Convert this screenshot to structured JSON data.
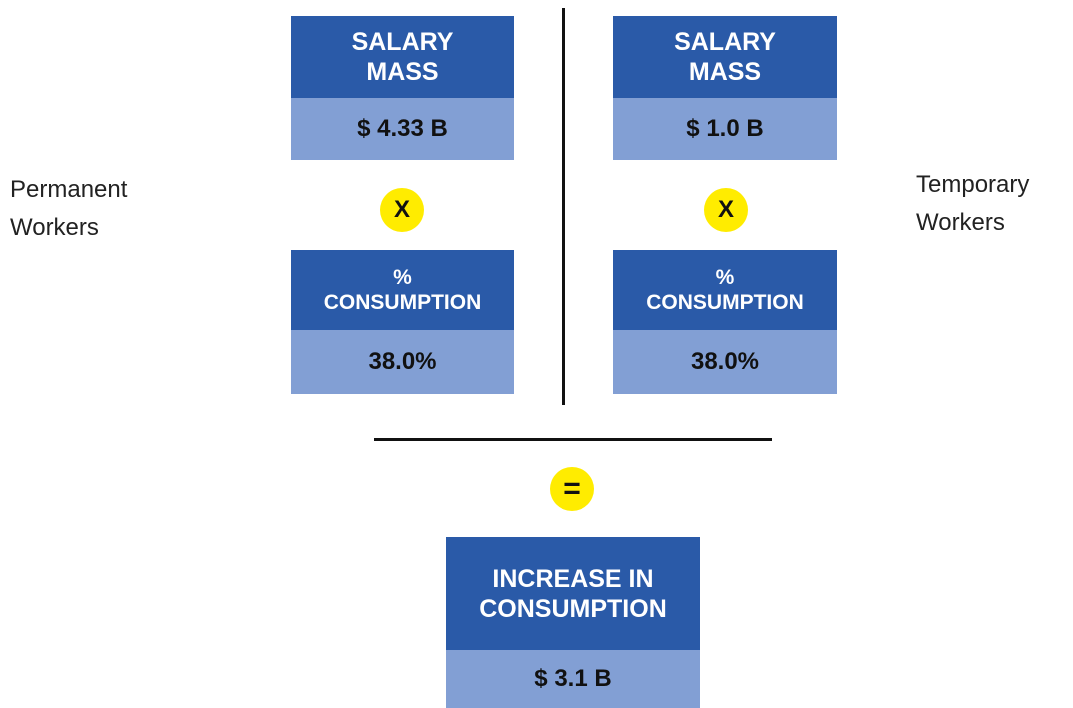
{
  "left": {
    "label": [
      "Permanent",
      "Workers"
    ],
    "salary": {
      "title": [
        "SALARY",
        "MASS"
      ],
      "value": "$ 4.33 B"
    },
    "operator": "X",
    "consumption": {
      "title": [
        "%",
        "CONSUMPTION"
      ],
      "value": "38.0%"
    }
  },
  "right": {
    "label": [
      "Temporary",
      "Workers"
    ],
    "salary": {
      "title": [
        "SALARY",
        "MASS"
      ],
      "value": "$ 1.0 B"
    },
    "operator": "X",
    "consumption": {
      "title": [
        "%",
        "CONSUMPTION"
      ],
      "value": "38.0%"
    }
  },
  "result": {
    "operator": "=",
    "title": [
      "INCREASE IN",
      "CONSUMPTION"
    ],
    "value": "$ 3.1 B"
  }
}
